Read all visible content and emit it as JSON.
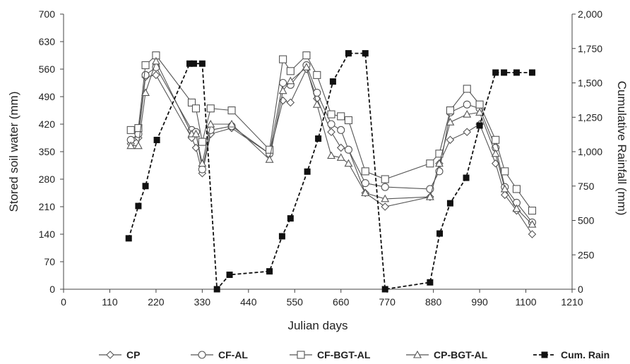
{
  "chart_data": {
    "type": "line",
    "title": "",
    "xlabel": "Julian days",
    "ylabel": "Stored soil water (mm)",
    "y2label": "Cumulative Rainfall (mm)",
    "xlim": [
      0,
      1210
    ],
    "ylim": [
      0,
      700
    ],
    "y2lim": [
      0,
      2000
    ],
    "xticks": [
      0,
      110,
      220,
      330,
      440,
      550,
      660,
      770,
      880,
      990,
      1100,
      1210
    ],
    "yticks": [
      0,
      70,
      140,
      210,
      280,
      350,
      420,
      490,
      560,
      630,
      700
    ],
    "y2ticks": [
      0,
      250,
      500,
      750,
      1000,
      1250,
      1500,
      1750,
      2000
    ],
    "xtick_labels": [
      "0",
      "110",
      "220",
      "330",
      "440",
      "550",
      "660",
      "770",
      "880",
      "990",
      "1100",
      "1210"
    ],
    "ytick_labels": [
      "0",
      "70",
      "140",
      "210",
      "280",
      "350",
      "420",
      "490",
      "560",
      "630",
      "700"
    ],
    "y2tick_labels": [
      "0",
      "250",
      "500",
      "750",
      "1,000",
      "1,250",
      "1,500",
      "1,750",
      "2,000"
    ],
    "legend_position": "bottom",
    "grid": false,
    "series": [
      {
        "name": "CP",
        "marker": "diamond",
        "axis": "left",
        "color": "#555555",
        "points": [
          [
            160,
            370
          ],
          [
            178,
            385
          ],
          [
            195,
            540
          ],
          [
            220,
            545
          ],
          [
            305,
            385
          ],
          [
            315,
            360
          ],
          [
            330,
            295
          ],
          [
            350,
            395
          ],
          [
            400,
            410
          ],
          [
            490,
            345
          ],
          [
            522,
            480
          ],
          [
            540,
            475
          ],
          [
            578,
            560
          ],
          [
            603,
            485
          ],
          [
            637,
            400
          ],
          [
            660,
            360
          ],
          [
            678,
            355
          ],
          [
            718,
            245
          ],
          [
            765,
            210
          ],
          [
            872,
            235
          ],
          [
            894,
            320
          ],
          [
            920,
            380
          ],
          [
            960,
            400
          ],
          [
            990,
            420
          ],
          [
            1028,
            320
          ],
          [
            1050,
            240
          ],
          [
            1078,
            200
          ],
          [
            1115,
            140
          ]
        ]
      },
      {
        "name": "CF-AL",
        "marker": "circle",
        "axis": "left",
        "color": "#555555",
        "points": [
          [
            160,
            380
          ],
          [
            178,
            395
          ],
          [
            195,
            545
          ],
          [
            220,
            565
          ],
          [
            305,
            405
          ],
          [
            315,
            400
          ],
          [
            330,
            305
          ],
          [
            350,
            405
          ],
          [
            400,
            415
          ],
          [
            490,
            345
          ],
          [
            522,
            525
          ],
          [
            540,
            520
          ],
          [
            578,
            570
          ],
          [
            603,
            500
          ],
          [
            637,
            420
          ],
          [
            660,
            405
          ],
          [
            678,
            355
          ],
          [
            718,
            270
          ],
          [
            765,
            260
          ],
          [
            872,
            255
          ],
          [
            894,
            300
          ],
          [
            920,
            450
          ],
          [
            960,
            470
          ],
          [
            990,
            460
          ],
          [
            1028,
            360
          ],
          [
            1050,
            260
          ],
          [
            1078,
            220
          ],
          [
            1115,
            170
          ]
        ]
      },
      {
        "name": "CF-BGT-AL",
        "marker": "square",
        "axis": "left",
        "color": "#555555",
        "points": [
          [
            160,
            405
          ],
          [
            178,
            410
          ],
          [
            195,
            570
          ],
          [
            220,
            595
          ],
          [
            305,
            475
          ],
          [
            315,
            460
          ],
          [
            330,
            375
          ],
          [
            350,
            460
          ],
          [
            400,
            455
          ],
          [
            490,
            355
          ],
          [
            522,
            585
          ],
          [
            540,
            555
          ],
          [
            578,
            595
          ],
          [
            603,
            545
          ],
          [
            637,
            445
          ],
          [
            660,
            440
          ],
          [
            678,
            430
          ],
          [
            718,
            300
          ],
          [
            765,
            280
          ],
          [
            872,
            320
          ],
          [
            894,
            345
          ],
          [
            920,
            455
          ],
          [
            960,
            510
          ],
          [
            990,
            470
          ],
          [
            1028,
            380
          ],
          [
            1050,
            300
          ],
          [
            1078,
            255
          ],
          [
            1115,
            200
          ]
        ]
      },
      {
        "name": "CP-BGT-AL",
        "marker": "triangle",
        "axis": "left",
        "color": "#555555",
        "points": [
          [
            160,
            365
          ],
          [
            178,
            365
          ],
          [
            195,
            500
          ],
          [
            220,
            580
          ],
          [
            305,
            395
          ],
          [
            315,
            395
          ],
          [
            330,
            320
          ],
          [
            350,
            420
          ],
          [
            400,
            420
          ],
          [
            490,
            330
          ],
          [
            522,
            505
          ],
          [
            540,
            530
          ],
          [
            578,
            565
          ],
          [
            603,
            470
          ],
          [
            637,
            340
          ],
          [
            660,
            335
          ],
          [
            678,
            320
          ],
          [
            718,
            245
          ],
          [
            765,
            230
          ],
          [
            872,
            235
          ],
          [
            894,
            320
          ],
          [
            920,
            425
          ],
          [
            960,
            445
          ],
          [
            990,
            450
          ],
          [
            1028,
            345
          ],
          [
            1050,
            255
          ],
          [
            1078,
            205
          ],
          [
            1115,
            165
          ]
        ]
      },
      {
        "name": "Cum. Rain",
        "marker": "filled-square",
        "axis": "right",
        "dashed": true,
        "color": "#111111",
        "points": [
          [
            155,
            370
          ],
          [
            178,
            605
          ],
          [
            195,
            750
          ],
          [
            222,
            1085
          ],
          [
            300,
            1640
          ],
          [
            310,
            1640
          ],
          [
            330,
            1640
          ],
          [
            365,
            0
          ],
          [
            395,
            105
          ],
          [
            490,
            130
          ],
          [
            520,
            385
          ],
          [
            540,
            515
          ],
          [
            580,
            855
          ],
          [
            606,
            1095
          ],
          [
            641,
            1510
          ],
          [
            678,
            1715
          ],
          [
            718,
            1715
          ],
          [
            765,
            0
          ],
          [
            872,
            50
          ],
          [
            895,
            405
          ],
          [
            920,
            625
          ],
          [
            958,
            810
          ],
          [
            990,
            1190
          ],
          [
            1028,
            1575
          ],
          [
            1048,
            1575
          ],
          [
            1078,
            1575
          ],
          [
            1115,
            1575
          ]
        ]
      }
    ]
  }
}
